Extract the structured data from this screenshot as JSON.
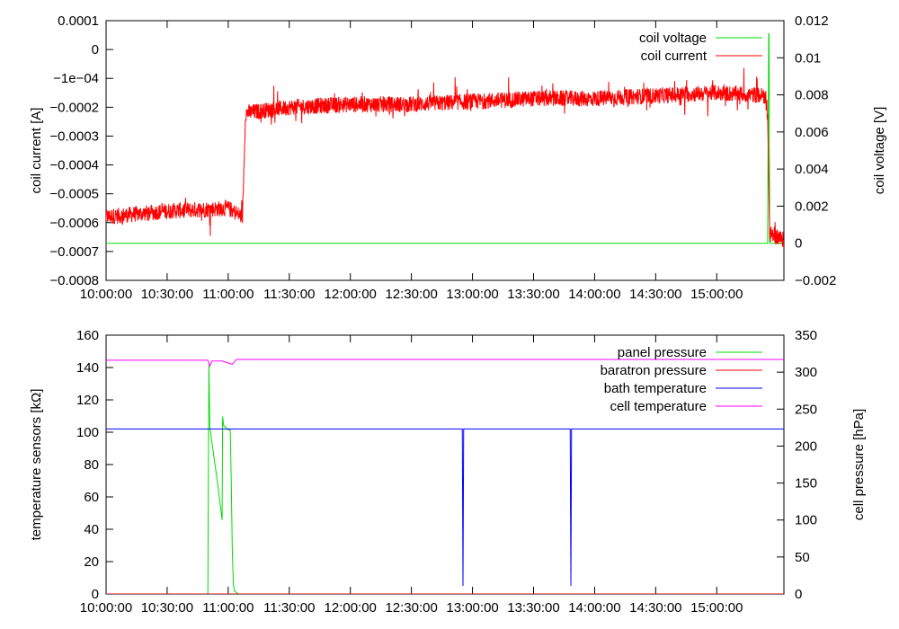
{
  "chart_data": [
    {
      "type": "line",
      "ylabel": "coil current [A]",
      "y2label": "coil voltage [V]",
      "x_ticks": [
        "10:00:00",
        "10:30:00",
        "11:00:00",
        "11:30:00",
        "12:00:00",
        "12:30:00",
        "13:00:00",
        "13:30:00",
        "14:00:00",
        "14:30:00",
        "15:00:00"
      ],
      "xlim": [
        "10:00:00",
        "15:33:00"
      ],
      "ylim": [
        -0.0008,
        0.0001
      ],
      "y_ticks": [
        "0.0001",
        "0",
        "−1e−04",
        "−0.0002",
        "−0.0003",
        "−0.0004",
        "−0.0005",
        "−0.0006",
        "−0.0007",
        "−0.0008"
      ],
      "y2lim": [
        -0.002,
        0.012
      ],
      "y2_ticks": [
        "0.012",
        "0.01",
        "0.008",
        "0.006",
        "0.004",
        "0.002",
        "0",
        "−0.002"
      ],
      "legend_position": "top-right",
      "series": [
        {
          "name": "coil voltage",
          "axis": "y2",
          "color": "#00dd00",
          "x": [
            "10:00:00",
            "15:25:00",
            "15:25:30",
            "15:25:40",
            "15:26:00",
            "15:33:00"
          ],
          "y": [
            0,
            0,
            0.0113,
            0.0113,
            0,
            0
          ]
        },
        {
          "name": "coil current",
          "axis": "y1",
          "color": "#ff0000",
          "noisy": true,
          "x": [
            "10:00:00",
            "10:30:00",
            "11:00:00",
            "11:07:00",
            "11:08:30",
            "11:30:00",
            "12:00:00",
            "12:30:00",
            "13:00:00",
            "13:30:00",
            "14:00:00",
            "14:30:00",
            "15:00:00",
            "15:24:00",
            "15:25:00",
            "15:26:00",
            "15:33:00"
          ],
          "y": [
            -0.00058,
            -0.00056,
            -0.00055,
            -0.00058,
            -0.00022,
            -0.0002,
            -0.00019,
            -0.00019,
            -0.00018,
            -0.00017,
            -0.00017,
            -0.00016,
            -0.00015,
            -0.00016,
            -0.00023,
            -0.00064,
            -0.00066
          ]
        }
      ]
    },
    {
      "type": "line",
      "ylabel": "temperature sensors [kΩ]",
      "y2label": "cell pressure [hPa]",
      "x_ticks": [
        "10:00:00",
        "10:30:00",
        "11:00:00",
        "11:30:00",
        "12:00:00",
        "12:30:00",
        "13:00:00",
        "13:30:00",
        "14:00:00",
        "14:30:00",
        "15:00:00"
      ],
      "xlim": [
        "10:00:00",
        "15:33:00"
      ],
      "ylim": [
        0,
        160
      ],
      "y_ticks": [
        "160",
        "140",
        "120",
        "100",
        "80",
        "60",
        "40",
        "20",
        "0"
      ],
      "y2lim": [
        0,
        350
      ],
      "y2_ticks": [
        "350",
        "300",
        "250",
        "200",
        "150",
        "100",
        "50",
        "0"
      ],
      "legend_position": "top-right",
      "series": [
        {
          "name": "panel pressure",
          "axis": "y2",
          "color": "#00dd00",
          "x": [
            "10:00:00",
            "10:50:00",
            "10:50:30",
            "10:51:00",
            "10:52:00",
            "10:55:00",
            "10:57:00",
            "10:57:15",
            "10:57:45",
            "11:00:00",
            "11:01:00",
            "11:01:30",
            "11:02:00",
            "11:02:30",
            "11:03:00",
            "11:05:00",
            "15:33:00"
          ],
          "y": [
            0,
            0,
            310,
            225,
            205,
            145,
            100,
            240,
            228,
            222,
            222,
            150,
            60,
            15,
            4,
            0,
            0
          ]
        },
        {
          "name": "baratron pressure",
          "axis": "y2",
          "color": "#ff0000",
          "x": [
            "10:00:00",
            "15:33:00"
          ],
          "y": [
            0,
            0
          ]
        },
        {
          "name": "bath temperature",
          "axis": "y1",
          "color": "#0000ff",
          "x": [
            "10:00:00",
            "12:55:00",
            "12:55:20",
            "12:55:40",
            "13:48:00",
            "13:48:20",
            "13:48:40",
            "15:33:00"
          ],
          "y": [
            102,
            102,
            5,
            102,
            102,
            5,
            102,
            102
          ]
        },
        {
          "name": "cell temperature",
          "axis": "y1",
          "color": "#ff00ff",
          "x": [
            "10:00:00",
            "10:50:00",
            "10:51:00",
            "10:52:00",
            "10:57:00",
            "11:02:00",
            "11:04:00",
            "15:33:00"
          ],
          "y": [
            144.5,
            144.5,
            141,
            144,
            144,
            142,
            145,
            145
          ]
        }
      ]
    }
  ]
}
